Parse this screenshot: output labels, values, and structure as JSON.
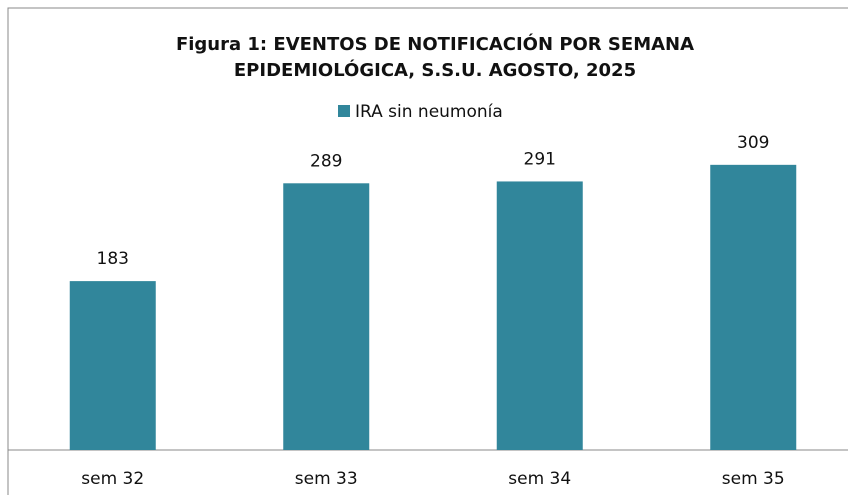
{
  "chart_data": {
    "type": "bar",
    "title": [
      "Figura 1: EVENTOS DE NOTIFICACIÓN POR SEMANA",
      "EPIDEMIOLÓGICA, S.S.U. AGOSTO, 2025"
    ],
    "categories": [
      "sem 32",
      "sem 33",
      "sem 34",
      "sem 35"
    ],
    "series": [
      {
        "name": "IRA sin neumonía",
        "color": "#31869b",
        "values": [
          183,
          289,
          291,
          309
        ]
      }
    ],
    "ylim": [
      0,
      350
    ],
    "legend": "top"
  }
}
